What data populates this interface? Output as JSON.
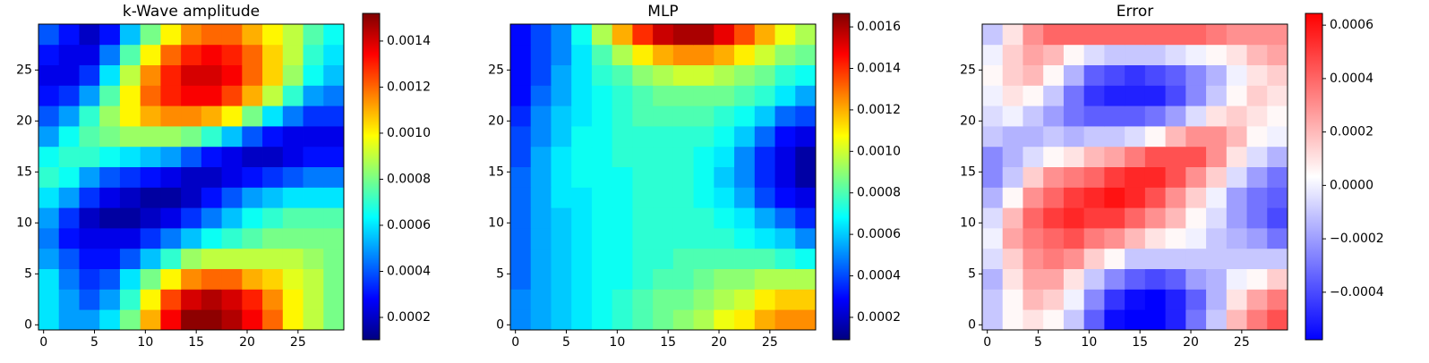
{
  "chart_data": [
    {
      "type": "heatmap",
      "title": "k-Wave amplitude",
      "colormap": "jet",
      "xbins": [
        -0.5,
        1.5,
        3.5,
        5.5,
        7.5,
        9.5,
        11.5,
        13.5,
        15.5,
        17.5,
        19.5,
        21.5,
        23.5,
        25.5,
        27.5,
        29.5
      ],
      "ybins": [
        -0.5,
        1.5,
        3.5,
        5.5,
        7.5,
        9.5,
        11.5,
        13.5,
        15.5,
        17.5,
        19.5,
        21.5,
        23.5,
        25.5,
        27.5,
        29.5
      ],
      "xlim": [
        -0.5,
        29.5
      ],
      "ylim": [
        -0.5,
        29.5
      ],
      "xticks": [
        0,
        5,
        10,
        15,
        20,
        25
      ],
      "yticks": [
        0,
        5,
        10,
        15,
        20,
        25
      ],
      "clim": [
        0.000103,
        0.00152
      ],
      "cticks": [
        {
          "value": 0.0002,
          "label": "0.0002"
        },
        {
          "value": 0.0004,
          "label": "0.0004"
        },
        {
          "value": 0.0006,
          "label": "0.0006"
        },
        {
          "value": 0.0008,
          "label": "0.0008"
        },
        {
          "value": 0.001,
          "label": "0.0010"
        },
        {
          "value": 0.0012,
          "label": "0.0012"
        },
        {
          "value": 0.0014,
          "label": "0.0014"
        }
      ],
      "values": [
        [
          0.0006,
          0.0005,
          0.0005,
          0.0006,
          0.0008,
          0.0011,
          0.00135,
          0.0015,
          0.0015,
          0.00145,
          0.00135,
          0.0012,
          0.001,
          0.0009,
          0.0008
        ],
        [
          0.0006,
          0.0005,
          0.0004,
          0.0005,
          0.0007,
          0.001,
          0.00125,
          0.0014,
          0.00145,
          0.0014,
          0.0013,
          0.00115,
          0.001,
          0.0009,
          0.0008
        ],
        [
          0.0006,
          0.00045,
          0.00035,
          0.0004,
          0.0006,
          0.0008,
          0.001,
          0.00115,
          0.0012,
          0.0012,
          0.0011,
          0.00105,
          0.00095,
          0.0009,
          0.0008
        ],
        [
          0.0005,
          0.0004,
          0.0003,
          0.0003,
          0.0004,
          0.00055,
          0.0007,
          0.00085,
          0.0009,
          0.0009,
          0.0009,
          0.0009,
          0.0009,
          0.00085,
          0.0008
        ],
        [
          0.00045,
          0.0003,
          0.00025,
          0.00025,
          0.00025,
          0.00035,
          0.00045,
          0.00055,
          0.00065,
          0.0007,
          0.00075,
          0.0008,
          0.0008,
          0.0008,
          0.0008
        ],
        [
          0.0005,
          0.00035,
          0.0002,
          0.00015,
          0.00015,
          0.0002,
          0.00025,
          0.00035,
          0.00045,
          0.00055,
          0.00065,
          0.0007,
          0.00075,
          0.00075,
          0.00075
        ],
        [
          0.0006,
          0.0005,
          0.00035,
          0.00025,
          0.0002,
          0.00015,
          0.00015,
          0.0002,
          0.0003,
          0.0004,
          0.0005,
          0.00055,
          0.0006,
          0.0006,
          0.0006
        ],
        [
          0.0007,
          0.00065,
          0.0005,
          0.0004,
          0.00035,
          0.0003,
          0.00025,
          0.0002,
          0.0002,
          0.00025,
          0.0003,
          0.00035,
          0.0004,
          0.00045,
          0.00045
        ],
        [
          0.00065,
          0.0007,
          0.0007,
          0.00065,
          0.0006,
          0.00055,
          0.0005,
          0.0004,
          0.0003,
          0.00025,
          0.0002,
          0.0002,
          0.00025,
          0.0003,
          0.0003
        ],
        [
          0.0005,
          0.00065,
          0.00075,
          0.0008,
          0.00085,
          0.00085,
          0.00085,
          0.0008,
          0.0007,
          0.00055,
          0.0004,
          0.0003,
          0.00025,
          0.00025,
          0.00025
        ],
        [
          0.0004,
          0.0005,
          0.0007,
          0.00085,
          0.001,
          0.0011,
          0.00115,
          0.00115,
          0.0011,
          0.001,
          0.0008,
          0.0006,
          0.00045,
          0.00035,
          0.00035
        ],
        [
          0.0003,
          0.00035,
          0.0005,
          0.00075,
          0.001,
          0.0012,
          0.0013,
          0.00135,
          0.00135,
          0.00125,
          0.0011,
          0.0009,
          0.0007,
          0.0005,
          0.00045
        ],
        [
          0.00025,
          0.00025,
          0.00035,
          0.0006,
          0.0009,
          0.00115,
          0.0013,
          0.0014,
          0.0014,
          0.00135,
          0.0012,
          0.00105,
          0.00085,
          0.00065,
          0.00055
        ],
        [
          0.0003,
          0.00025,
          0.00025,
          0.00045,
          0.00075,
          0.001,
          0.0012,
          0.0013,
          0.00135,
          0.0013,
          0.0012,
          0.00105,
          0.0009,
          0.0007,
          0.0006
        ],
        [
          0.0004,
          0.0003,
          0.0002,
          0.0003,
          0.00055,
          0.0008,
          0.001,
          0.00115,
          0.0012,
          0.0012,
          0.0011,
          0.001,
          0.0009,
          0.00075,
          0.00065
        ]
      ]
    },
    {
      "type": "heatmap",
      "title": "MLP",
      "colormap": "jet",
      "xbins": [
        -0.5,
        1.5,
        3.5,
        5.5,
        7.5,
        9.5,
        11.5,
        13.5,
        15.5,
        17.5,
        19.5,
        21.5,
        23.5,
        25.5,
        27.5,
        29.5
      ],
      "ybins": [
        -0.5,
        1.5,
        3.5,
        5.5,
        7.5,
        9.5,
        11.5,
        13.5,
        15.5,
        17.5,
        19.5,
        21.5,
        23.5,
        25.5,
        27.5,
        29.5
      ],
      "xlim": [
        -0.5,
        29.5
      ],
      "ylim": [
        -0.5,
        29.5
      ],
      "xticks": [
        0,
        5,
        10,
        15,
        20,
        25
      ],
      "yticks": [
        0,
        5,
        10,
        15,
        20,
        25
      ],
      "clim": [
        9.2e-05,
        0.001665
      ],
      "cticks": [
        {
          "value": 0.0002,
          "label": "0.0002"
        },
        {
          "value": 0.0004,
          "label": "0.0004"
        },
        {
          "value": 0.0006,
          "label": "0.0006"
        },
        {
          "value": 0.0008,
          "label": "0.0008"
        },
        {
          "value": 0.001,
          "label": "0.0010"
        },
        {
          "value": 0.0012,
          "label": "0.0012"
        },
        {
          "value": 0.0014,
          "label": "0.0014"
        },
        {
          "value": 0.0016,
          "label": "0.0016"
        }
      ],
      "values": [
        [
          0.0005,
          0.00055,
          0.0006,
          0.00065,
          0.0007,
          0.00075,
          0.0008,
          0.00085,
          0.0009,
          0.00095,
          0.00105,
          0.0011,
          0.0012,
          0.00125,
          0.00125
        ],
        [
          0.0005,
          0.00055,
          0.0006,
          0.00065,
          0.0007,
          0.00075,
          0.0008,
          0.00085,
          0.00085,
          0.0009,
          0.00095,
          0.001,
          0.0011,
          0.00115,
          0.00115
        ],
        [
          0.00045,
          0.00055,
          0.0006,
          0.00065,
          0.0007,
          0.0007,
          0.00075,
          0.0008,
          0.0008,
          0.00085,
          0.0009,
          0.0009,
          0.00095,
          0.00095,
          0.00095
        ],
        [
          0.00045,
          0.00055,
          0.0006,
          0.00065,
          0.0007,
          0.0007,
          0.00075,
          0.00075,
          0.0008,
          0.0008,
          0.0008,
          0.0008,
          0.0008,
          0.00075,
          0.0007
        ],
        [
          0.00045,
          0.00055,
          0.0006,
          0.00065,
          0.0007,
          0.0007,
          0.00075,
          0.00075,
          0.00075,
          0.00075,
          0.00075,
          0.0007,
          0.00065,
          0.0006,
          0.0005
        ],
        [
          0.00045,
          0.00055,
          0.0006,
          0.00065,
          0.0007,
          0.0007,
          0.00075,
          0.00075,
          0.00075,
          0.00075,
          0.0007,
          0.00065,
          0.00055,
          0.00045,
          0.00035
        ],
        [
          0.00045,
          0.00055,
          0.00065,
          0.00065,
          0.0007,
          0.0007,
          0.00075,
          0.00075,
          0.00075,
          0.0007,
          0.00065,
          0.00055,
          0.0004,
          0.0003,
          0.00025
        ],
        [
          0.00045,
          0.00055,
          0.00065,
          0.0007,
          0.0007,
          0.0007,
          0.00075,
          0.00075,
          0.00075,
          0.0007,
          0.0006,
          0.0005,
          0.00035,
          0.00025,
          0.00015
        ],
        [
          0.0004,
          0.00055,
          0.00065,
          0.0007,
          0.0007,
          0.00075,
          0.00075,
          0.00075,
          0.00075,
          0.0007,
          0.00065,
          0.0005,
          0.00035,
          0.00025,
          0.00015
        ],
        [
          0.0004,
          0.0005,
          0.0006,
          0.0007,
          0.0007,
          0.00075,
          0.00075,
          0.00075,
          0.00075,
          0.00075,
          0.0007,
          0.0006,
          0.00045,
          0.0003,
          0.00025
        ],
        [
          0.00035,
          0.0005,
          0.0006,
          0.00065,
          0.0007,
          0.00075,
          0.0008,
          0.0008,
          0.0008,
          0.0008,
          0.00075,
          0.0007,
          0.0006,
          0.00045,
          0.0004
        ],
        [
          0.0003,
          0.00045,
          0.00055,
          0.00065,
          0.0007,
          0.00075,
          0.0008,
          0.00085,
          0.00085,
          0.00085,
          0.00085,
          0.0008,
          0.00075,
          0.00065,
          0.00055
        ],
        [
          0.0003,
          0.0004,
          0.00055,
          0.00065,
          0.00075,
          0.0008,
          0.0009,
          0.00095,
          0.001,
          0.001,
          0.00095,
          0.0009,
          0.00085,
          0.00075,
          0.0007
        ],
        [
          0.0003,
          0.0004,
          0.0005,
          0.00065,
          0.0008,
          0.00095,
          0.0011,
          0.0012,
          0.00125,
          0.00125,
          0.0012,
          0.0011,
          0.001,
          0.0009,
          0.00085
        ],
        [
          0.0003,
          0.0004,
          0.0005,
          0.0007,
          0.00095,
          0.0012,
          0.0014,
          0.00155,
          0.0016,
          0.0016,
          0.0015,
          0.00135,
          0.0012,
          0.00105,
          0.00095
        ]
      ]
    },
    {
      "type": "heatmap",
      "title": "Error",
      "colormap": "bwr",
      "xbins": [
        -0.5,
        1.5,
        3.5,
        5.5,
        7.5,
        9.5,
        11.5,
        13.5,
        15.5,
        17.5,
        19.5,
        21.5,
        23.5,
        25.5,
        27.5,
        29.5
      ],
      "ybins": [
        -0.5,
        1.5,
        3.5,
        5.5,
        7.5,
        9.5,
        11.5,
        13.5,
        15.5,
        17.5,
        19.5,
        21.5,
        23.5,
        25.5,
        27.5,
        29.5
      ],
      "xlim": [
        -0.5,
        29.5
      ],
      "ylim": [
        -0.5,
        29.5
      ],
      "xticks": [
        0,
        5,
        10,
        15,
        20,
        25
      ],
      "yticks": [
        0,
        5,
        10,
        15,
        20,
        25
      ],
      "clim": [
        -0.000578,
        0.000644
      ],
      "cticks": [
        {
          "value": -0.0004,
          "label": "−0.0004"
        },
        {
          "value": -0.0002,
          "label": "−0.0002"
        },
        {
          "value": 0,
          "label": "0.0000"
        },
        {
          "value": 0.0002,
          "label": "0.0002"
        },
        {
          "value": 0.0004,
          "label": "0.0004"
        },
        {
          "value": 0.0006,
          "label": "0.0006"
        }
      ],
      "values": [
        [
          -0.0001,
          5e-05,
          0.0001,
          5e-05,
          -0.0001,
          -0.00035,
          -0.00055,
          -0.00065,
          -0.0006,
          -0.0005,
          -0.0003,
          -0.0001,
          0.0002,
          0.00035,
          0.00045
        ],
        [
          -0.0001,
          5e-05,
          0.0002,
          0.00015,
          0,
          -0.00025,
          -0.00045,
          -0.00055,
          -0.0006,
          -0.0005,
          -0.00035,
          -0.00015,
          0.0001,
          0.00025,
          0.00035
        ],
        [
          -0.00015,
          0.0001,
          0.00025,
          0.00025,
          0.0001,
          -0.0001,
          -0.00025,
          -0.00035,
          -0.0004,
          -0.00035,
          -0.0002,
          -0.00015,
          0,
          5e-05,
          0.00015
        ],
        [
          -5e-05,
          0.00015,
          0.0003,
          0.00035,
          0.0003,
          0.00015,
          5e-05,
          -0.0001,
          -0.0001,
          -0.0001,
          -0.0001,
          -0.0001,
          -0.0001,
          -0.0001,
          -0.0001
        ],
        [
          0,
          0.00025,
          0.00035,
          0.0004,
          0.00045,
          0.00035,
          0.0003,
          0.0002,
          0.0001,
          5e-05,
          0,
          -0.0001,
          -0.00015,
          -0.0002,
          -0.0003
        ],
        [
          -5e-05,
          0.0002,
          0.0004,
          0.0005,
          0.00055,
          0.0005,
          0.0005,
          0.0004,
          0.0003,
          0.0002,
          5e-05,
          -5e-05,
          -0.0002,
          -0.0003,
          -0.0004
        ],
        [
          -0.00015,
          5e-05,
          0.0003,
          0.0004,
          0.0005,
          0.00055,
          0.0006,
          0.00055,
          0.00045,
          0.0003,
          0.00015,
          0,
          -0.0002,
          -0.0003,
          -0.00035
        ],
        [
          -0.00025,
          -0.0001,
          0.00015,
          0.0003,
          0.00035,
          0.0004,
          0.0005,
          0.00055,
          0.00055,
          0.00045,
          0.0003,
          0.00015,
          -5e-05,
          -0.0002,
          -0.0003
        ],
        [
          -0.00025,
          -0.00015,
          -5e-05,
          5e-05,
          0.0001,
          0.0002,
          0.00025,
          0.00035,
          0.00045,
          0.00045,
          0.00045,
          0.0003,
          0.0001,
          -5e-05,
          -0.00015
        ],
        [
          -0.0001,
          -0.00015,
          -0.00015,
          -0.0001,
          -0.00015,
          -0.0001,
          -0.0001,
          -5e-05,
          5e-05,
          0.0002,
          0.0003,
          0.0003,
          0.0002,
          5e-05,
          0
        ],
        [
          -5e-05,
          0,
          -0.0001,
          -0.0002,
          -0.0003,
          -0.00035,
          -0.00035,
          -0.00035,
          -0.0003,
          -0.0002,
          -5e-05,
          0.0001,
          0.00015,
          0.0001,
          5e-05
        ],
        [
          0,
          0.0001,
          5e-05,
          -0.0001,
          -0.0003,
          -0.00045,
          -0.0005,
          -0.0005,
          -0.0005,
          -0.0004,
          -0.00025,
          -0.0001,
          5e-05,
          0.00015,
          0.0001
        ],
        [
          5e-05,
          0.00015,
          0.0002,
          5e-05,
          -0.00015,
          -0.00035,
          -0.0004,
          -0.00045,
          -0.0004,
          -0.00035,
          -0.00025,
          -0.00015,
          0,
          0.0001,
          0.00015
        ],
        [
          0,
          0.00015,
          0.00025,
          0.0002,
          5e-05,
          -5e-05,
          -0.0001,
          -0.0001,
          -0.0001,
          -5e-05,
          0,
          5e-05,
          0.0001,
          0.0002,
          0.00025
        ],
        [
          -0.0001,
          0.0001,
          0.0003,
          0.0004,
          0.0004,
          0.0004,
          0.0004,
          0.0004,
          0.0004,
          0.0004,
          0.0004,
          0.00035,
          0.0003,
          0.0003,
          0.0003
        ]
      ]
    }
  ]
}
